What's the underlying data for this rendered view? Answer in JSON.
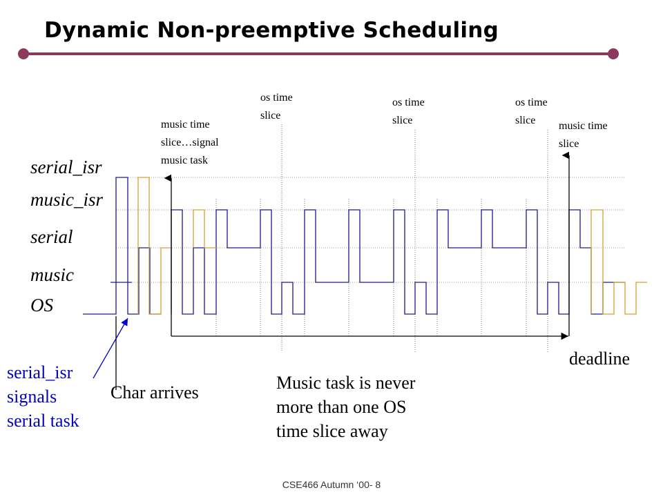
{
  "slide": {
    "title": "Dynamic Non-preemptive Scheduling",
    "footer": "CSE466 Autumn ‘00- 8"
  },
  "lanes": {
    "serial_isr": "serial_isr",
    "music_isr": "music_isr",
    "serial": "serial",
    "music": "music",
    "os": "OS"
  },
  "annotations": {
    "music_time_slice_signal": "music time\nslice…signal\nmusic task",
    "os_time_slice_1": "os time\nslice",
    "os_time_slice_2": "os time\nslice",
    "os_time_slice_3": "os time\nslice",
    "music_time_slice_end": "music time\nslice",
    "deadline": "deadline",
    "char_arrives": "Char arrives",
    "serial_isr_signals": "serial_isr\nsignals\nserial task",
    "music_never_far": "Music task is never\nmore than one OS\ntime slice away"
  },
  "colors": {
    "accent_rule": "#8b3a5c",
    "task_trace": "#1a1a8c",
    "serial_trace": "#d4a030",
    "guide_line": "#888888",
    "callout_text": "#0000c8"
  }
}
